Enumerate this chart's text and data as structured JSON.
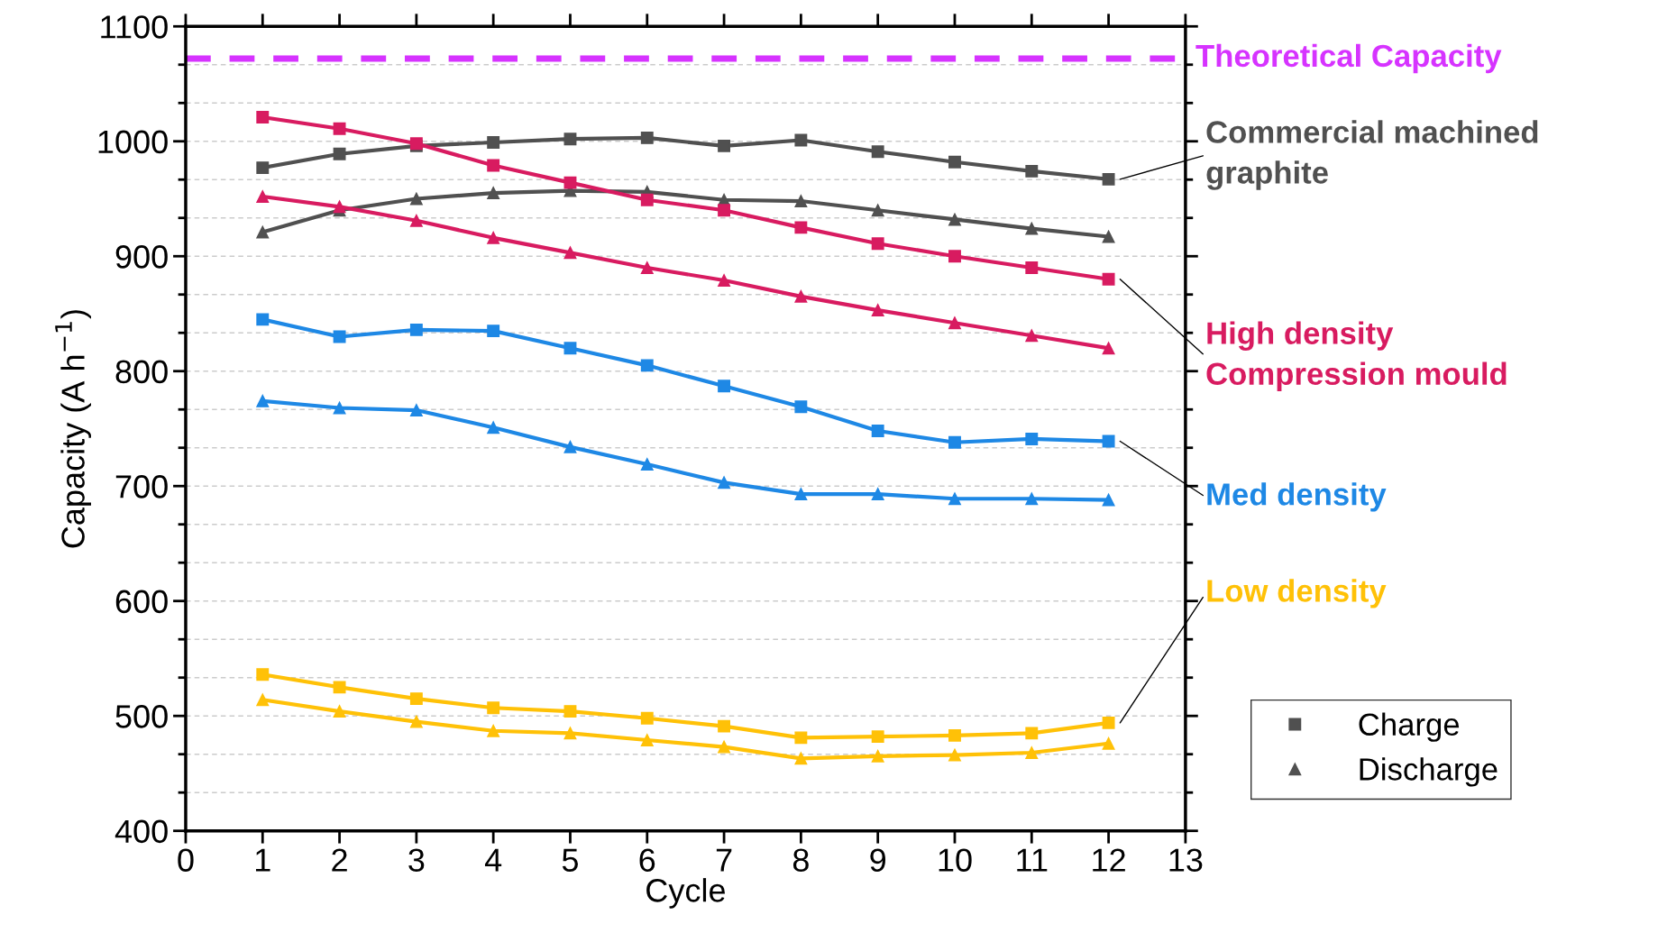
{
  "chart_data": {
    "type": "line",
    "xlabel": "Cycle",
    "ylabel": "Capacity (A h$^{−1}$)",
    "x": [
      1,
      2,
      3,
      4,
      5,
      6,
      7,
      8,
      9,
      10,
      11,
      12
    ],
    "series": [
      {
        "name": "Charge",
        "color": "#505050",
        "marker": "square",
        "values": [
          977,
          989,
          996,
          999,
          1002,
          1003,
          996,
          1001,
          991,
          982,
          974,
          967
        ]
      },
      {
        "name": "Discharge",
        "color": "#505050",
        "marker": "triangle",
        "values": [
          921,
          940,
          950,
          955,
          957,
          956,
          949,
          948,
          940,
          932,
          924,
          917
        ]
      },
      {
        "color": "#d81b60",
        "marker": "square",
        "values": [
          1021,
          1011,
          998,
          979,
          964,
          949,
          940,
          925,
          911,
          900,
          890,
          880
        ]
      },
      {
        "color": "#d81b60",
        "marker": "triangle",
        "values": [
          952,
          943,
          931,
          916,
          903,
          890,
          879,
          865,
          853,
          842,
          831,
          820
        ]
      },
      {
        "color": "#1e88e5",
        "marker": "square",
        "values": [
          845,
          830,
          836,
          835,
          820,
          805,
          787,
          769,
          748,
          738,
          741,
          739
        ]
      },
      {
        "color": "#1e88e5",
        "marker": "triangle",
        "values": [
          774,
          768,
          766,
          751,
          734,
          719,
          703,
          693,
          693,
          689,
          689,
          688
        ]
      },
      {
        "color": "#ffc107",
        "marker": "square",
        "values": [
          536,
          525,
          515,
          507,
          504,
          498,
          491,
          481,
          482,
          483,
          485,
          494
        ]
      },
      {
        "color": "#ffc107",
        "marker": "triangle",
        "values": [
          514,
          504,
          495,
          487,
          485,
          479,
          473,
          463,
          465,
          466,
          468,
          476
        ]
      }
    ],
    "ref_lines": [
      {
        "axis": "y",
        "value": 1072,
        "label": "Theoretical Capacity",
        "color": "#d633ff",
        "line_style": "dashed"
      }
    ],
    "annotations": [
      "Commercial machined\ngraphite",
      "High density\nCompression mould",
      "Med density",
      "Low density"
    ],
    "xlim": [
      0,
      13
    ],
    "xticks": [
      0,
      1,
      2,
      3,
      4,
      5,
      6,
      7,
      8,
      9,
      10,
      11,
      12,
      13
    ],
    "ylim": [
      400,
      1100
    ],
    "yticks": [
      400,
      500,
      600,
      700,
      800,
      900,
      1000,
      1100
    ],
    "grid": "y",
    "legend": "bottom right",
    "line_style": "solid"
  }
}
